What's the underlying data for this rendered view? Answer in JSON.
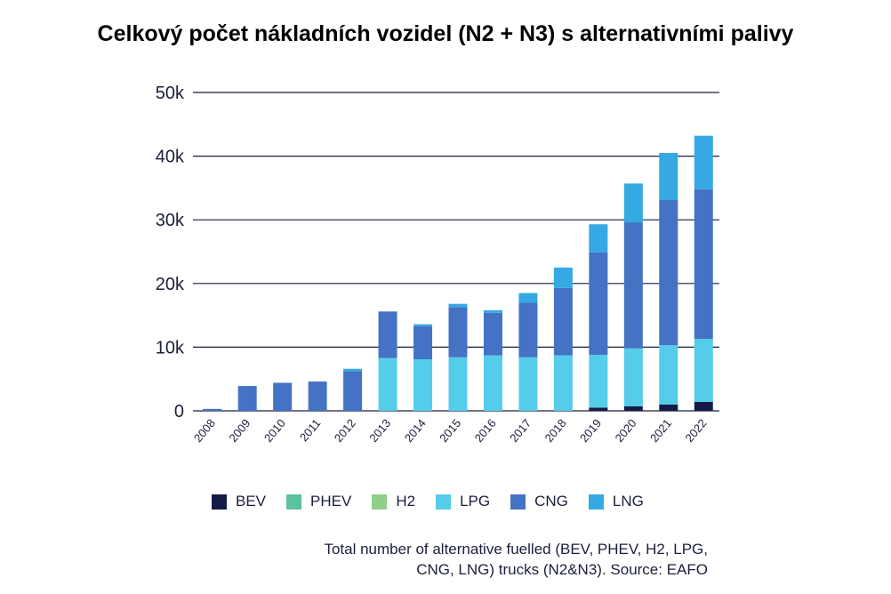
{
  "chart_data": {
    "type": "bar",
    "stacked": true,
    "title": "Celkový počet nákladních vozidel (N2 + N3) s alternativními palivy",
    "xlabel": "",
    "ylabel": "",
    "ylim": [
      0,
      50000
    ],
    "yticks": [
      {
        "value": 0,
        "label": "0"
      },
      {
        "value": 10000,
        "label": "10k"
      },
      {
        "value": 20000,
        "label": "20k"
      },
      {
        "value": 30000,
        "label": "30k"
      },
      {
        "value": 40000,
        "label": "40k"
      },
      {
        "value": 50000,
        "label": "50k"
      }
    ],
    "grid": true,
    "legend_position": "bottom",
    "categories": [
      "2008",
      "2009",
      "2010",
      "2011",
      "2012",
      "2013",
      "2014",
      "2015",
      "2016",
      "2017",
      "2018",
      "2019",
      "2020",
      "2021",
      "2022"
    ],
    "series": [
      {
        "name": "BEV",
        "color": "#141a4a",
        "values": [
          0,
          0,
          0,
          0,
          0,
          0,
          0,
          0,
          0,
          0,
          0,
          500,
          700,
          1000,
          1400
        ]
      },
      {
        "name": "PHEV",
        "color": "#5bc3a0",
        "values": [
          0,
          0,
          0,
          0,
          0,
          0,
          0,
          0,
          0,
          0,
          0,
          0,
          0,
          0,
          0
        ]
      },
      {
        "name": "H2",
        "color": "#8fcf8a",
        "values": [
          0,
          0,
          0,
          0,
          0,
          0,
          0,
          0,
          0,
          0,
          0,
          0,
          0,
          0,
          0
        ]
      },
      {
        "name": "LPG",
        "color": "#55cdea",
        "values": [
          0,
          0,
          0,
          0,
          0,
          8300,
          8100,
          8400,
          8700,
          8400,
          8700,
          8300,
          9100,
          9300,
          9900
        ]
      },
      {
        "name": "CNG",
        "color": "#4472c4",
        "values": [
          300,
          3900,
          4400,
          4600,
          6200,
          7300,
          5200,
          7900,
          6700,
          8600,
          10600,
          16100,
          19800,
          22800,
          23500
        ]
      },
      {
        "name": "LNG",
        "color": "#35a9e3",
        "values": [
          0,
          0,
          0,
          0,
          400,
          0,
          300,
          500,
          400,
          1500,
          3200,
          4400,
          6100,
          7400,
          8400
        ]
      }
    ]
  },
  "caption": {
    "line1": "Total number of alternative fuelled (BEV, PHEV, H2, LPG,",
    "line2": "CNG, LNG) trucks (N2&N3). Source: EAFO"
  }
}
